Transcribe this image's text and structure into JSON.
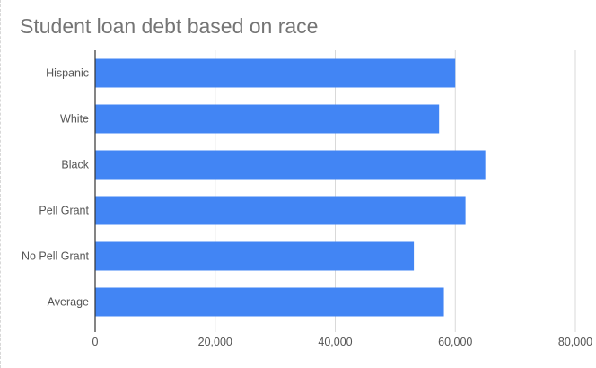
{
  "chart_data": {
    "type": "bar",
    "orientation": "horizontal",
    "title": "Student loan debt based on race",
    "categories": [
      "Hispanic",
      "White",
      "Black",
      "Pell Grant",
      "No Pell Grant",
      "Average"
    ],
    "values": [
      60000,
      57300,
      65000,
      61700,
      53100,
      58100
    ],
    "xlim": [
      0,
      80000
    ],
    "ticks": [
      0,
      20000,
      40000,
      60000,
      80000
    ],
    "tick_labels": [
      "0",
      "20,000",
      "40,000",
      "60,000",
      "80,000"
    ],
    "grid": true,
    "legend": "none",
    "bar_color": "#4285f4"
  }
}
